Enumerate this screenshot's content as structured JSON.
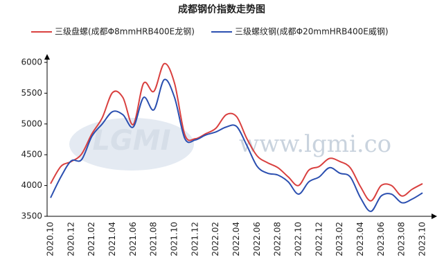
{
  "chart_data": {
    "type": "line",
    "title": "成都钢价指数走势图",
    "watermark_logo": "LGMI",
    "watermark": "www.lgmi.co",
    "categories": [
      "2020.10",
      null,
      "2020.12",
      null,
      "2021.02",
      null,
      "2021.04",
      null,
      "2021.06",
      null,
      "2021.08",
      null,
      "2021.10",
      null,
      "2021.12",
      null,
      "2022.02",
      null,
      "2022.04",
      null,
      "2022.06",
      null,
      "2022.08",
      null,
      "2022.10",
      null,
      "2022.12",
      null,
      "2023.02",
      null,
      "2023.04",
      null,
      "2023.06",
      null,
      "2023.08",
      null,
      "2023.10"
    ],
    "series": [
      {
        "name": "三级盘螺(成都Φ8mmHRB400E龙钢)",
        "color": "#d9403f",
        "values": [
          4030,
          4310,
          4390,
          4510,
          4840,
          5100,
          5510,
          5430,
          4990,
          5660,
          5530,
          5980,
          5660,
          4820,
          4760,
          4840,
          4930,
          5150,
          5120,
          4760,
          4480,
          4370,
          4290,
          4140,
          4000,
          4250,
          4310,
          4440,
          4390,
          4290,
          3980,
          3750,
          4000,
          4000,
          3830,
          3940,
          4030
        ]
      },
      {
        "name": "三级螺纹钢(成都Φ20mmHRB400E威钢)",
        "color": "#2b4fb0",
        "values": [
          3800,
          4140,
          4400,
          4420,
          4800,
          5000,
          5200,
          5150,
          4950,
          5430,
          5230,
          5720,
          5430,
          4760,
          4740,
          4820,
          4870,
          4950,
          4960,
          4650,
          4310,
          4200,
          4170,
          4060,
          3860,
          4060,
          4140,
          4290,
          4200,
          4140,
          3800,
          3580,
          3830,
          3860,
          3720,
          3780,
          3880
        ]
      }
    ],
    "ylim": [
      3500,
      6000
    ],
    "yticks": [
      3500,
      4000,
      4500,
      5000,
      5500,
      6000
    ]
  }
}
